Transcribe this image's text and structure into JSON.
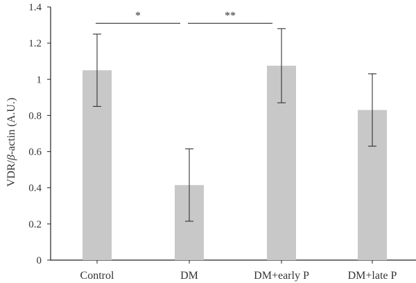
{
  "chart_data": {
    "type": "bar",
    "categories": [
      "Control",
      "DM",
      "DM+early P",
      "DM+late P"
    ],
    "values": [
      1.05,
      0.415,
      1.075,
      0.83
    ],
    "errors": [
      0.2,
      0.2,
      0.205,
      0.2
    ],
    "ylabel": "VDR/β-actin (A.U.)",
    "ylabel_parts": [
      "VDR/",
      "β",
      "-actin (A.U.)"
    ],
    "ylim": [
      0,
      1.4
    ],
    "yticks": [
      "0",
      "0.2",
      "0.4",
      "0.6",
      "0.8",
      "1",
      "1.2",
      "1.4"
    ],
    "ytick_values": [
      0,
      0.2,
      0.4,
      0.6,
      0.8,
      1.0,
      1.2,
      1.4
    ],
    "bar_color": "#c8c8c8",
    "grid": false,
    "annotations": [
      {
        "label": "*",
        "from": 0,
        "to": 1,
        "y": 1.31
      },
      {
        "label": "**",
        "from": 1,
        "to": 2,
        "y": 1.31
      }
    ]
  }
}
